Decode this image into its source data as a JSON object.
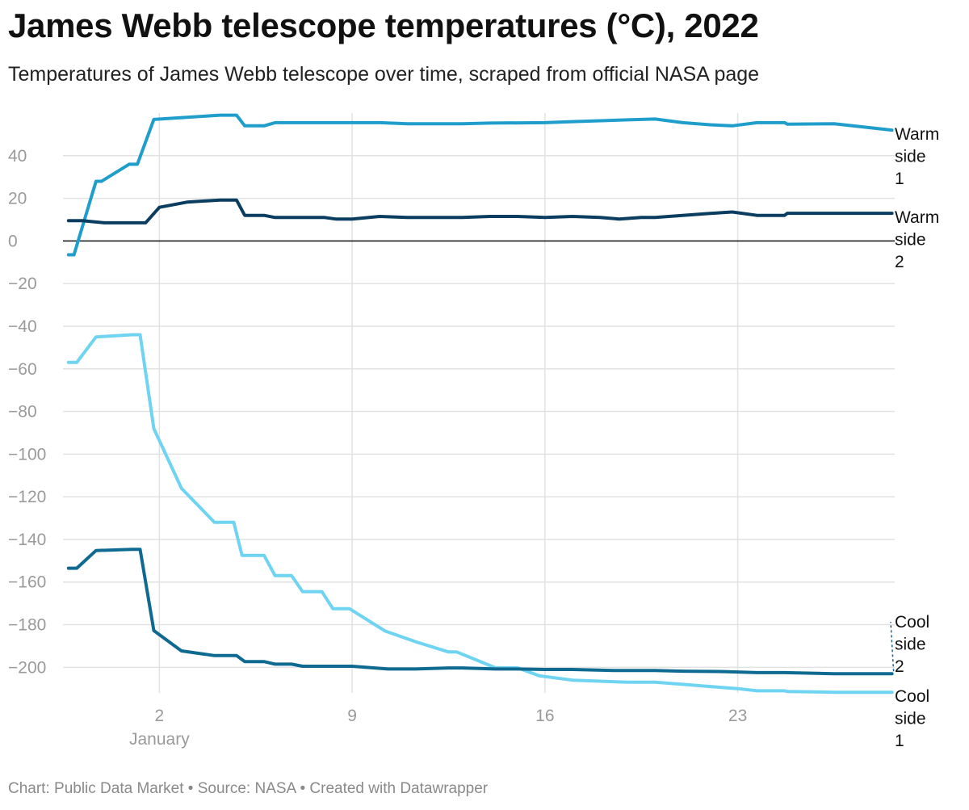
{
  "title": "James Webb telescope temperatures (°C), 2022",
  "subtitle": "Temperatures of James Webb telescope over time, scraped from official NASA page",
  "footer": "Chart: Public Data Market • Source: NASA • Created with Datawrapper",
  "chart_data": {
    "type": "line",
    "title": "James Webb telescope temperatures (°C), 2022",
    "subtitle": "Temperatures of James Webb telescope over time, scraped from official NASA page",
    "xlabel": "",
    "ylabel": "",
    "xlim": [
      -1.5,
      28.7
    ],
    "ylim": [
      -212,
      60
    ],
    "y_ticks": [
      40,
      20,
      0,
      -20,
      -40,
      -60,
      -80,
      -100,
      -120,
      -140,
      -160,
      -180,
      -200
    ],
    "x_ticks": [
      {
        "value": 2,
        "label": "2",
        "sublabel": "January"
      },
      {
        "value": 9,
        "label": "9",
        "sublabel": ""
      },
      {
        "value": 16,
        "label": "16",
        "sublabel": ""
      },
      {
        "value": 23,
        "label": "23",
        "sublabel": ""
      }
    ],
    "grid": true,
    "legend": "direct labels at right end of lines",
    "series": [
      {
        "name": "Warm side 1",
        "label_lines": [
          "Warm",
          "side",
          "1"
        ],
        "color": "#1f9ecb",
        "points": [
          [
            -1.3,
            -6.5
          ],
          [
            -1.1,
            -6.5
          ],
          [
            -0.3,
            28
          ],
          [
            -0.1,
            28
          ],
          [
            0.9,
            36
          ],
          [
            1.2,
            36
          ],
          [
            1.8,
            57
          ],
          [
            3,
            58
          ],
          [
            4.2,
            59
          ],
          [
            4.8,
            59
          ],
          [
            5.1,
            54
          ],
          [
            5.8,
            54
          ],
          [
            6.2,
            55.5
          ],
          [
            9,
            55.5
          ],
          [
            10,
            55.5
          ],
          [
            11,
            55
          ],
          [
            13,
            55
          ],
          [
            14,
            55.3
          ],
          [
            16,
            55.5
          ],
          [
            17,
            56
          ],
          [
            19,
            56.8
          ],
          [
            20,
            57.2
          ],
          [
            21,
            55.5
          ],
          [
            22,
            54.5
          ],
          [
            22.8,
            54
          ],
          [
            23.7,
            55.5
          ],
          [
            24.7,
            55.5
          ],
          [
            24.8,
            54.8
          ],
          [
            26.5,
            55
          ],
          [
            28.6,
            52
          ]
        ]
      },
      {
        "name": "Warm side 2",
        "label_lines": [
          "Warm",
          "side",
          "2"
        ],
        "color": "#0a3d60",
        "points": [
          [
            -1.3,
            9.5
          ],
          [
            -0.8,
            9.5
          ],
          [
            0,
            8.5
          ],
          [
            1,
            8.5
          ],
          [
            1.5,
            8.5
          ],
          [
            2,
            15.8
          ],
          [
            3,
            18.2
          ],
          [
            4.2,
            19.2
          ],
          [
            4.8,
            19.2
          ],
          [
            5.1,
            12
          ],
          [
            5.8,
            12
          ],
          [
            6.2,
            11
          ],
          [
            7,
            11
          ],
          [
            8,
            11
          ],
          [
            8.4,
            10.3
          ],
          [
            9,
            10.3
          ],
          [
            10,
            11.5
          ],
          [
            11,
            11
          ],
          [
            13,
            11
          ],
          [
            14,
            11.5
          ],
          [
            15,
            11.5
          ],
          [
            16,
            11
          ],
          [
            17,
            11.5
          ],
          [
            18,
            11
          ],
          [
            18.7,
            10.3
          ],
          [
            19.5,
            11
          ],
          [
            20,
            11
          ],
          [
            21,
            12
          ],
          [
            22,
            12.9
          ],
          [
            22.8,
            13.6
          ],
          [
            23.7,
            12
          ],
          [
            24.7,
            12
          ],
          [
            24.8,
            13
          ],
          [
            28.6,
            13
          ]
        ]
      },
      {
        "name": "Cool side 1",
        "label_lines": [
          "Cool",
          "side",
          "1"
        ],
        "color": "#6fd3f2",
        "points": [
          [
            -1.3,
            -57
          ],
          [
            -1,
            -57
          ],
          [
            -0.3,
            -45
          ],
          [
            1,
            -44
          ],
          [
            1.3,
            -44
          ],
          [
            1.8,
            -88
          ],
          [
            2.8,
            -116
          ],
          [
            4,
            -132
          ],
          [
            4.7,
            -132
          ],
          [
            5,
            -147.5
          ],
          [
            5.8,
            -147.5
          ],
          [
            6.2,
            -157
          ],
          [
            6.8,
            -157
          ],
          [
            7.2,
            -164.5
          ],
          [
            7.9,
            -164.5
          ],
          [
            8.3,
            -172.5
          ],
          [
            8.9,
            -172.5
          ],
          [
            10.2,
            -183
          ],
          [
            11.3,
            -188
          ],
          [
            12.5,
            -192.8
          ],
          [
            12.8,
            -192.8
          ],
          [
            14.2,
            -200.2
          ],
          [
            15,
            -200.2
          ],
          [
            15.8,
            -204
          ],
          [
            17,
            -206
          ],
          [
            19,
            -207
          ],
          [
            20,
            -207
          ],
          [
            21,
            -208
          ],
          [
            22,
            -209
          ],
          [
            23,
            -210
          ],
          [
            23.7,
            -211
          ],
          [
            24.7,
            -211
          ],
          [
            24.8,
            -211.3
          ],
          [
            26.5,
            -211.7
          ],
          [
            28.6,
            -211.7
          ]
        ]
      },
      {
        "name": "Cool side 2",
        "label_lines": [
          "Cool",
          "side",
          "2"
        ],
        "color": "#0f6a91",
        "points": [
          [
            -1.3,
            -153.5
          ],
          [
            -1,
            -153.5
          ],
          [
            -0.3,
            -145.2
          ],
          [
            1,
            -144.7
          ],
          [
            1.3,
            -144.7
          ],
          [
            1.8,
            -182.8
          ],
          [
            2.8,
            -192.3
          ],
          [
            4,
            -194.5
          ],
          [
            4.8,
            -194.5
          ],
          [
            5.1,
            -197.3
          ],
          [
            5.8,
            -197.3
          ],
          [
            6.2,
            -198.5
          ],
          [
            6.8,
            -198.5
          ],
          [
            7.2,
            -199.5
          ],
          [
            9,
            -199.5
          ],
          [
            10.3,
            -200.8
          ],
          [
            11.3,
            -200.8
          ],
          [
            12.5,
            -200.3
          ],
          [
            13,
            -200.3
          ],
          [
            14.2,
            -200.8
          ],
          [
            15,
            -200.8
          ],
          [
            16,
            -201
          ],
          [
            17,
            -201
          ],
          [
            18.5,
            -201.5
          ],
          [
            20,
            -201.5
          ],
          [
            21,
            -201.8
          ],
          [
            22.5,
            -202
          ],
          [
            23.7,
            -202.5
          ],
          [
            24.7,
            -202.5
          ],
          [
            26.5,
            -203
          ],
          [
            28.6,
            -203
          ]
        ]
      }
    ]
  }
}
